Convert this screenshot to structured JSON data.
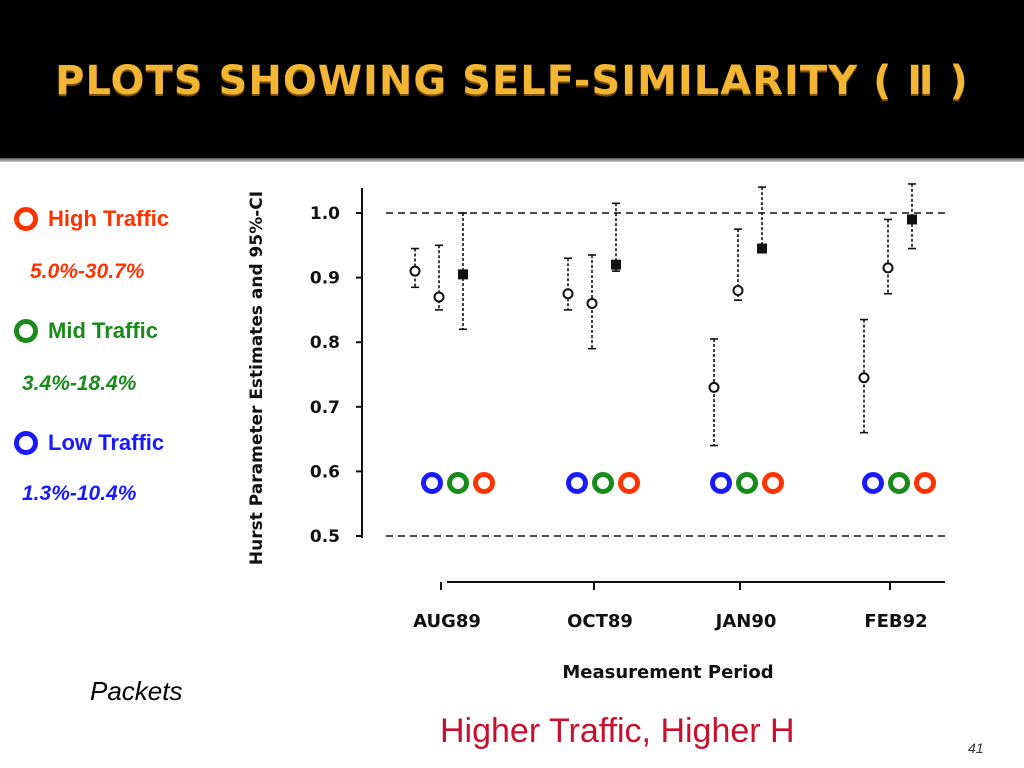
{
  "slide": {
    "title": "PLOTS SHOWING SELF-SIMILARITY ( Ⅱ )",
    "packets_label": "Packets",
    "conclusion": "Higher Traffic, Higher H",
    "page_number": "41"
  },
  "legend": [
    {
      "label": "High Traffic",
      "range": "5.0%-30.7%",
      "color": "#ff3300"
    },
    {
      "label": "Mid Traffic",
      "range": "3.4%-18.4%",
      "color": "#1a8a1a"
    },
    {
      "label": "Low Traffic",
      "range": "1.3%-10.4%",
      "color": "#1a1aff"
    }
  ],
  "colors": {
    "title": "#f2b534",
    "conclusion": "#c8102e",
    "low": "#1a1aff",
    "mid": "#1a8a1a",
    "high": "#ff3300"
  },
  "chart_data": {
    "type": "scatter",
    "title": "",
    "xlabel": "Measurement Period",
    "ylabel": "Hurst Parameter Estimates and 95%-CI",
    "categories": [
      "AUG89",
      "OCT89",
      "JAN90",
      "FEB92"
    ],
    "ylim": [
      0.5,
      1.0
    ],
    "yticks": [
      "0.5",
      "0.6",
      "0.7",
      "0.8",
      "0.9",
      "1.0"
    ],
    "reference_lines": [
      0.5,
      1.0
    ],
    "grid": false,
    "series": [
      {
        "name": "Low Traffic",
        "points": [
          {
            "category": "AUG89",
            "y": 0.91,
            "ci": [
              0.885,
              0.945
            ]
          },
          {
            "category": "OCT89",
            "y": 0.875,
            "ci": [
              0.85,
              0.93
            ]
          },
          {
            "category": "JAN90",
            "y": 0.73,
            "ci": [
              0.64,
              0.805
            ]
          },
          {
            "category": "FEB92",
            "y": 0.745,
            "ci": [
              0.66,
              0.835
            ]
          }
        ]
      },
      {
        "name": "Mid Traffic",
        "points": [
          {
            "category": "AUG89",
            "y": 0.87,
            "ci": [
              0.85,
              0.95
            ]
          },
          {
            "category": "OCT89",
            "y": 0.86,
            "ci": [
              0.79,
              0.935
            ]
          },
          {
            "category": "JAN90",
            "y": 0.88,
            "ci": [
              0.865,
              0.975
            ]
          },
          {
            "category": "FEB92",
            "y": 0.915,
            "ci": [
              0.875,
              0.99
            ]
          }
        ]
      },
      {
        "name": "High Traffic",
        "points": [
          {
            "category": "AUG89",
            "y": 0.905,
            "ci": [
              0.82,
              1.0
            ]
          },
          {
            "category": "OCT89",
            "y": 0.92,
            "ci": [
              0.91,
              1.015
            ]
          },
          {
            "category": "JAN90",
            "y": 0.945,
            "ci": [
              0.94,
              1.04
            ]
          },
          {
            "category": "FEB92",
            "y": 0.99,
            "ci": [
              0.945,
              1.045
            ]
          }
        ]
      }
    ],
    "marker_order": [
      "Low Traffic",
      "Mid Traffic",
      "High Traffic"
    ]
  }
}
